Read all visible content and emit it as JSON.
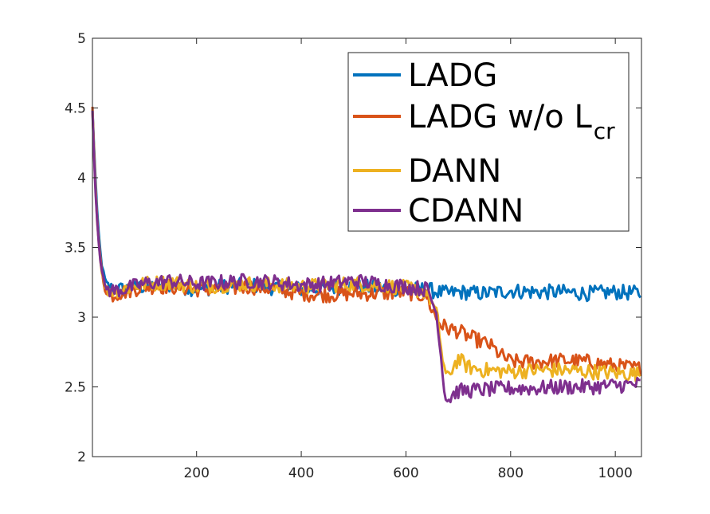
{
  "chart_data": {
    "type": "line",
    "title": "",
    "xlabel": "",
    "ylabel": "",
    "xlim": [
      1,
      1050
    ],
    "ylim": [
      2,
      5
    ],
    "xticks": [
      "200",
      "400",
      "600",
      "800",
      "1000"
    ],
    "yticks": [
      "2",
      "2.5",
      "3",
      "3.5",
      "4",
      "4.5",
      "5"
    ],
    "grid": false,
    "legend_position": "top-right",
    "series": [
      {
        "name": "LADG",
        "label_main": "LADG",
        "label_sub": "",
        "color": "#0072BD",
        "x": [
          1,
          5,
          10,
          15,
          20,
          25,
          30,
          40,
          60,
          100,
          150,
          200,
          250,
          300,
          350,
          400,
          450,
          500,
          550,
          600,
          640,
          660,
          680,
          700,
          750,
          800,
          850,
          900,
          950,
          1000,
          1050
        ],
        "values": [
          4.5,
          4.15,
          3.75,
          3.5,
          3.35,
          3.27,
          3.22,
          3.2,
          3.2,
          3.22,
          3.23,
          3.2,
          3.22,
          3.23,
          3.21,
          3.2,
          3.21,
          3.22,
          3.21,
          3.2,
          3.2,
          3.18,
          3.17,
          3.18,
          3.17,
          3.19,
          3.18,
          3.18,
          3.17,
          3.18,
          3.17
        ]
      },
      {
        "name": "LADG w/o L_cr",
        "label_main": "LADG w/o L",
        "label_sub": "cr",
        "color": "#D95319",
        "x": [
          1,
          5,
          10,
          15,
          20,
          25,
          30,
          40,
          60,
          100,
          150,
          200,
          250,
          300,
          350,
          400,
          450,
          500,
          550,
          600,
          640,
          650,
          660,
          670,
          680,
          700,
          720,
          740,
          760,
          780,
          800,
          820,
          850,
          900,
          950,
          1000,
          1050
        ],
        "values": [
          4.5,
          4.1,
          3.7,
          3.45,
          3.3,
          3.2,
          3.17,
          3.16,
          3.18,
          3.22,
          3.22,
          3.2,
          3.2,
          3.22,
          3.2,
          3.17,
          3.16,
          3.17,
          3.17,
          3.18,
          3.15,
          3.05,
          2.98,
          2.94,
          2.92,
          2.9,
          2.86,
          2.83,
          2.8,
          2.73,
          2.68,
          2.68,
          2.68,
          2.69,
          2.68,
          2.65,
          2.63
        ]
      },
      {
        "name": "DANN",
        "label_main": "DANN",
        "label_sub": "",
        "color": "#EDB120",
        "x": [
          1,
          5,
          10,
          15,
          20,
          25,
          30,
          40,
          60,
          100,
          150,
          200,
          250,
          300,
          350,
          400,
          450,
          500,
          550,
          600,
          640,
          650,
          660,
          665,
          670,
          675,
          680,
          690,
          700,
          720,
          750,
          800,
          850,
          900,
          950,
          1000,
          1050
        ],
        "values": [
          4.5,
          4.1,
          3.7,
          3.45,
          3.3,
          3.22,
          3.2,
          3.19,
          3.2,
          3.24,
          3.25,
          3.22,
          3.23,
          3.24,
          3.23,
          3.22,
          3.23,
          3.24,
          3.23,
          3.21,
          3.18,
          3.1,
          3.0,
          2.85,
          2.7,
          2.6,
          2.55,
          2.65,
          2.7,
          2.64,
          2.62,
          2.61,
          2.62,
          2.62,
          2.61,
          2.6,
          2.59
        ]
      },
      {
        "name": "CDANN",
        "label_main": "CDANN",
        "label_sub": "",
        "color": "#7E2F8E",
        "x": [
          1,
          5,
          10,
          15,
          20,
          25,
          30,
          40,
          60,
          100,
          150,
          200,
          250,
          300,
          350,
          400,
          450,
          500,
          550,
          600,
          640,
          650,
          660,
          665,
          670,
          675,
          680,
          690,
          700,
          750,
          800,
          850,
          900,
          950,
          1000,
          1050
        ],
        "values": [
          4.5,
          4.05,
          3.7,
          3.45,
          3.3,
          3.22,
          3.2,
          3.19,
          3.2,
          3.24,
          3.26,
          3.24,
          3.25,
          3.26,
          3.25,
          3.23,
          3.24,
          3.26,
          3.24,
          3.22,
          3.2,
          3.12,
          3.0,
          2.8,
          2.6,
          2.45,
          2.4,
          2.45,
          2.47,
          2.48,
          2.49,
          2.49,
          2.5,
          2.5,
          2.51,
          2.52
        ]
      }
    ]
  }
}
